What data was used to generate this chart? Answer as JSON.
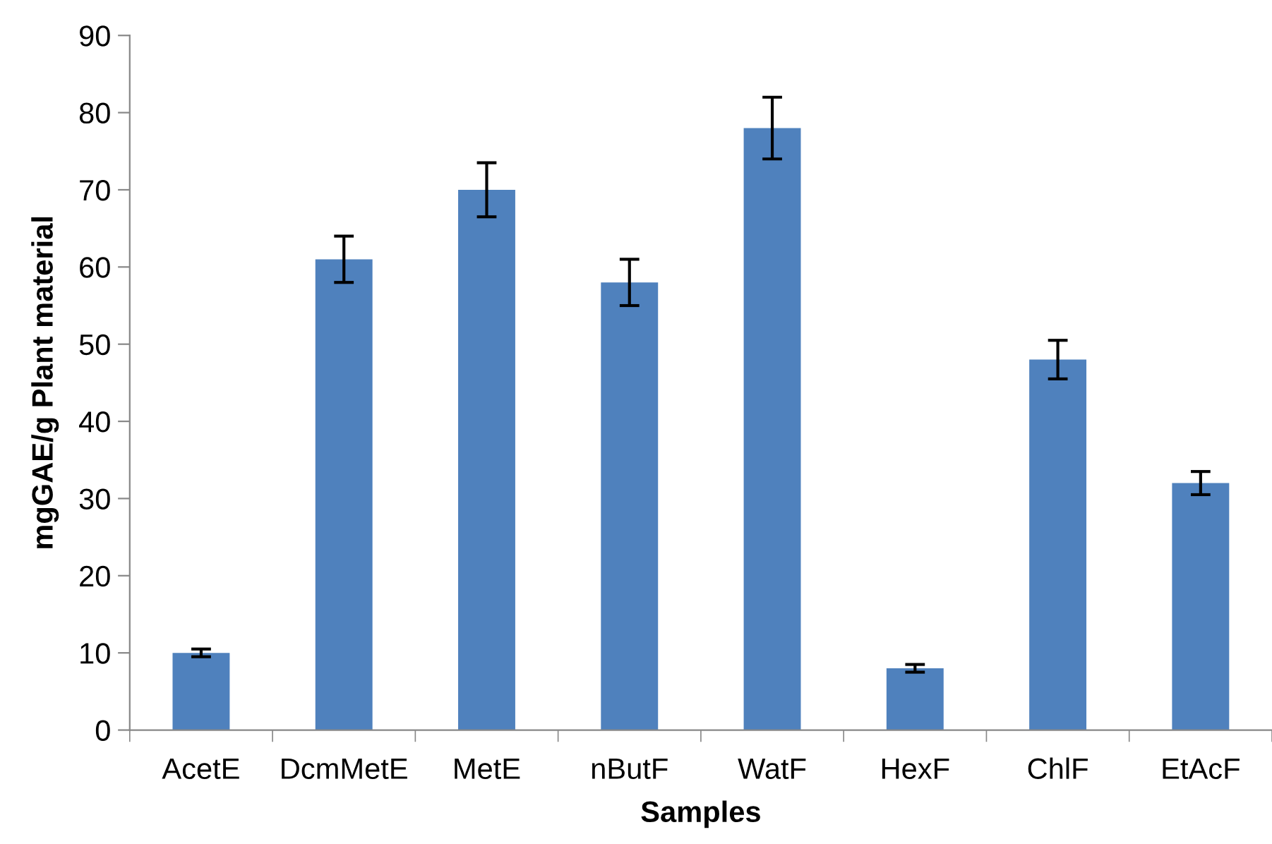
{
  "chart_data": {
    "type": "bar",
    "xlabel": "Samples",
    "ylabel": "mgGAE/g Plant material",
    "categories": [
      "AcetE",
      "DcmMetE",
      "MetE",
      "nButF",
      "WatF",
      "HexF",
      "ChlF",
      "EtAcF"
    ],
    "values": [
      10,
      61,
      70,
      58,
      78,
      8,
      48,
      32
    ],
    "errors": [
      0.5,
      3,
      3.5,
      3,
      4,
      0.5,
      2.5,
      1.5
    ],
    "color": "#4f81bd",
    "ylim": [
      0,
      90
    ],
    "yticks": [
      0,
      10,
      20,
      30,
      40,
      50,
      60,
      70,
      80,
      90
    ],
    "grid": false,
    "legend": false
  }
}
